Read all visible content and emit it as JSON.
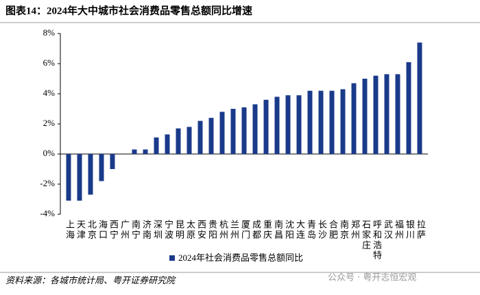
{
  "chart_data": {
    "type": "bar",
    "title": "图表14：2024年大中城市社会消费品零售总额同比增速",
    "categories": [
      "上海",
      "天津",
      "北京",
      "海口",
      "西宁",
      "广州",
      "南宁",
      "济南",
      "深圳",
      "宁波",
      "昆明",
      "太原",
      "西安",
      "贵阳",
      "杭州",
      "兰州",
      "厦门",
      "成都",
      "重庆",
      "南昌",
      "沈阳",
      "大连",
      "青岛",
      "长沙",
      "合肥",
      "南京",
      "郑州",
      "石家庄",
      "呼和浩特",
      "武汉",
      "福州",
      "银川",
      "拉萨"
    ],
    "series": [
      {
        "name": "2024年社会消费品零售总额同比",
        "color": "#1a3a8a",
        "values": [
          -3.1,
          -3.1,
          -2.7,
          -1.8,
          -1.0,
          0,
          0.3,
          0.3,
          1.1,
          1.3,
          1.7,
          1.8,
          2.2,
          2.4,
          2.8,
          3.0,
          3.1,
          3.3,
          3.6,
          3.8,
          3.9,
          3.9,
          4.2,
          4.2,
          4.2,
          4.3,
          4.7,
          5.0,
          5.2,
          5.3,
          5.3,
          6.1,
          7.4
        ]
      }
    ],
    "ylim": [
      -4,
      8
    ],
    "yticks": [
      {
        "value": -4,
        "label": "-4%"
      },
      {
        "value": -2,
        "label": "-2%"
      },
      {
        "value": 0,
        "label": "0%"
      },
      {
        "value": 2,
        "label": "2%"
      },
      {
        "value": 4,
        "label": "4%"
      },
      {
        "value": 6,
        "label": "6%"
      },
      {
        "value": 8,
        "label": "8%"
      }
    ],
    "source": "资料来源：各城市统计局、粤开证券研究院",
    "watermark": "公众号 · 粤开志恒宏观"
  }
}
